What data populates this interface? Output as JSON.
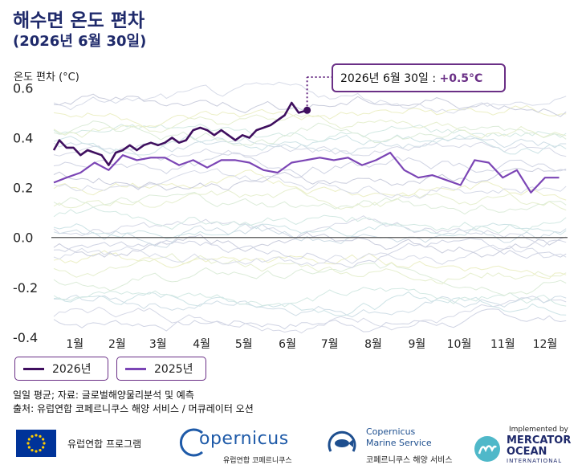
{
  "header": {
    "title": "해수면 온도 편차",
    "subtitle": "(2026년 6월 30일)"
  },
  "callout": {
    "text": "2026년 6월 30일 : ",
    "value": "+0.5°C"
  },
  "legend": {
    "items": [
      "2026년",
      "2025년"
    ]
  },
  "source": {
    "line1": "일일 평균; 자료: 글로벌해양물리분석 및 예측",
    "line2": "출처: 유럽연합 코페르니쿠스 해양 서비스 / 머큐레이터 오션"
  },
  "footer": {
    "eu_program": "유럽연합 프로그램",
    "copernicus_logo": "opernicus",
    "copernicus_sub": "유럽연합 코페르니쿠스",
    "cms_line1": "Copernicus",
    "cms_line2": "Marine Service",
    "cms_sub": "코페르니쿠스 해양 서비스",
    "mercator_top": "Implemented by",
    "mercator_l1": "MERCATOR",
    "mercator_l2": "OCEAN",
    "mercator_l3": "INTERNATIONAL"
  },
  "colors": {
    "title": "#1f2a6b",
    "series_2026": "#3f0f5f",
    "series_2025": "#7b45b5",
    "callout_border": "#6a2f86"
  },
  "chart_data": {
    "type": "line",
    "ylabel": "온도 편차 (°C)",
    "ylim": [
      -0.4,
      0.63
    ],
    "yticks": [
      -0.4,
      -0.2,
      0.0,
      0.2,
      0.4,
      0.6
    ],
    "ytick_labels": [
      "-0.4",
      "-0.2",
      "0.0",
      "0.2",
      "0.4",
      "0.6"
    ],
    "xlim": [
      1,
      366
    ],
    "xticks": [
      16,
      46,
      75,
      106,
      136,
      167,
      197,
      228,
      259,
      289,
      320,
      350
    ],
    "xtick_labels": [
      "1월",
      "2월",
      "3월",
      "4월",
      "5월",
      "6월",
      "7월",
      "8월",
      "9월",
      "10월",
      "11월",
      "12월"
    ],
    "grid": false,
    "legend_position": "bottom-left",
    "series": [
      {
        "name": "2026년",
        "x": [
          1,
          5,
          10,
          15,
          20,
          25,
          30,
          35,
          40,
          45,
          50,
          55,
          60,
          65,
          70,
          75,
          80,
          85,
          90,
          95,
          100,
          105,
          110,
          115,
          120,
          125,
          130,
          135,
          140,
          145,
          150,
          155,
          160,
          165,
          170,
          175,
          181
        ],
        "values": [
          0.35,
          0.39,
          0.36,
          0.36,
          0.33,
          0.35,
          0.34,
          0.33,
          0.29,
          0.34,
          0.35,
          0.37,
          0.35,
          0.37,
          0.38,
          0.37,
          0.38,
          0.4,
          0.38,
          0.39,
          0.43,
          0.44,
          0.43,
          0.41,
          0.43,
          0.41,
          0.39,
          0.41,
          0.4,
          0.43,
          0.44,
          0.45,
          0.47,
          0.49,
          0.54,
          0.5,
          0.51
        ]
      },
      {
        "name": "2025년",
        "x": [
          1,
          10,
          20,
          30,
          40,
          50,
          60,
          70,
          80,
          90,
          100,
          110,
          120,
          130,
          140,
          150,
          160,
          170,
          180,
          190,
          200,
          210,
          220,
          230,
          240,
          250,
          260,
          270,
          280,
          290,
          300,
          310,
          320,
          330,
          340,
          350,
          360
        ],
        "values": [
          0.22,
          0.24,
          0.26,
          0.3,
          0.27,
          0.33,
          0.31,
          0.32,
          0.32,
          0.29,
          0.31,
          0.28,
          0.31,
          0.31,
          0.3,
          0.27,
          0.26,
          0.3,
          0.31,
          0.32,
          0.31,
          0.32,
          0.29,
          0.31,
          0.34,
          0.27,
          0.24,
          0.25,
          0.23,
          0.21,
          0.31,
          0.3,
          0.24,
          0.27,
          0.18,
          0.24,
          0.24
        ]
      }
    ]
  }
}
